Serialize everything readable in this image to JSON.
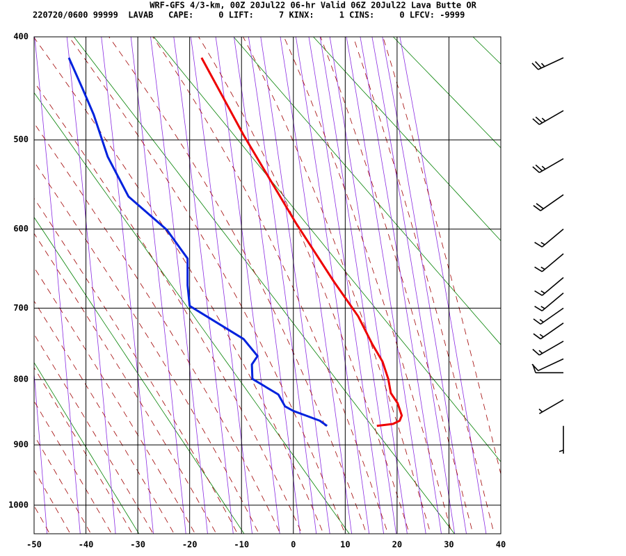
{
  "header": {
    "line1": "WRF-GFS 4/3-km, 00Z 20Jul22 06-hr Valid 06Z 20Jul22 Lava Butte OR",
    "line2": "220720/0600 99999  LAVAB   CAPE:     0 LIFT:     7 KINX:     1 CINS:     0 LFCV: -9999"
  },
  "chart_data": {
    "type": "sounding",
    "xlim": [
      -50,
      40
    ],
    "xticks": [
      -50,
      -40,
      -30,
      -20,
      -10,
      0,
      10,
      20,
      30,
      40
    ],
    "ylim": [
      1050,
      400
    ],
    "yticks": [
      400,
      500,
      600,
      700,
      800,
      900,
      1000
    ],
    "grid": true,
    "series": [
      {
        "color": "#ee0000",
        "values": [
          -17.7,
          -9.6,
          0.4,
          7.8,
          12.5,
          15.2,
          17.2,
          18.3,
          18.8,
          20.1,
          20.9,
          20.5,
          19.2,
          16.1
        ],
        "pressure": [
          419,
          495,
          592,
          665,
          711,
          749,
          774,
          799,
          820,
          835,
          854,
          862,
          867,
          870
        ]
      },
      {
        "color": "#0022dd",
        "values": [
          -43.3,
          -40.5,
          -38.5,
          -35.8,
          -31.8,
          -24.4,
          -20.4,
          -20.4,
          -20.0,
          -9.6,
          -6.9,
          -8.0,
          -7.9,
          -2.9,
          -1.6,
          0.0,
          2.4,
          5.1,
          6.5
        ],
        "pressure": [
          419,
          450,
          474,
          518,
          562,
          601,
          636,
          670,
          697,
          742,
          766,
          778,
          799,
          822,
          840,
          847,
          854,
          862,
          870
        ]
      }
    ],
    "winds": {
      "pressure": [
        419,
        470,
        520,
        560,
        600,
        630,
        660,
        680,
        700,
        720,
        745,
        770,
        790,
        830,
        870
      ],
      "direction": [
        245,
        240,
        240,
        235,
        230,
        230,
        230,
        230,
        235,
        235,
        240,
        245,
        270,
        240,
        180
      ],
      "speed": [
        25,
        25,
        25,
        20,
        15,
        15,
        15,
        15,
        15,
        15,
        15,
        10,
        10,
        5,
        5
      ]
    }
  }
}
